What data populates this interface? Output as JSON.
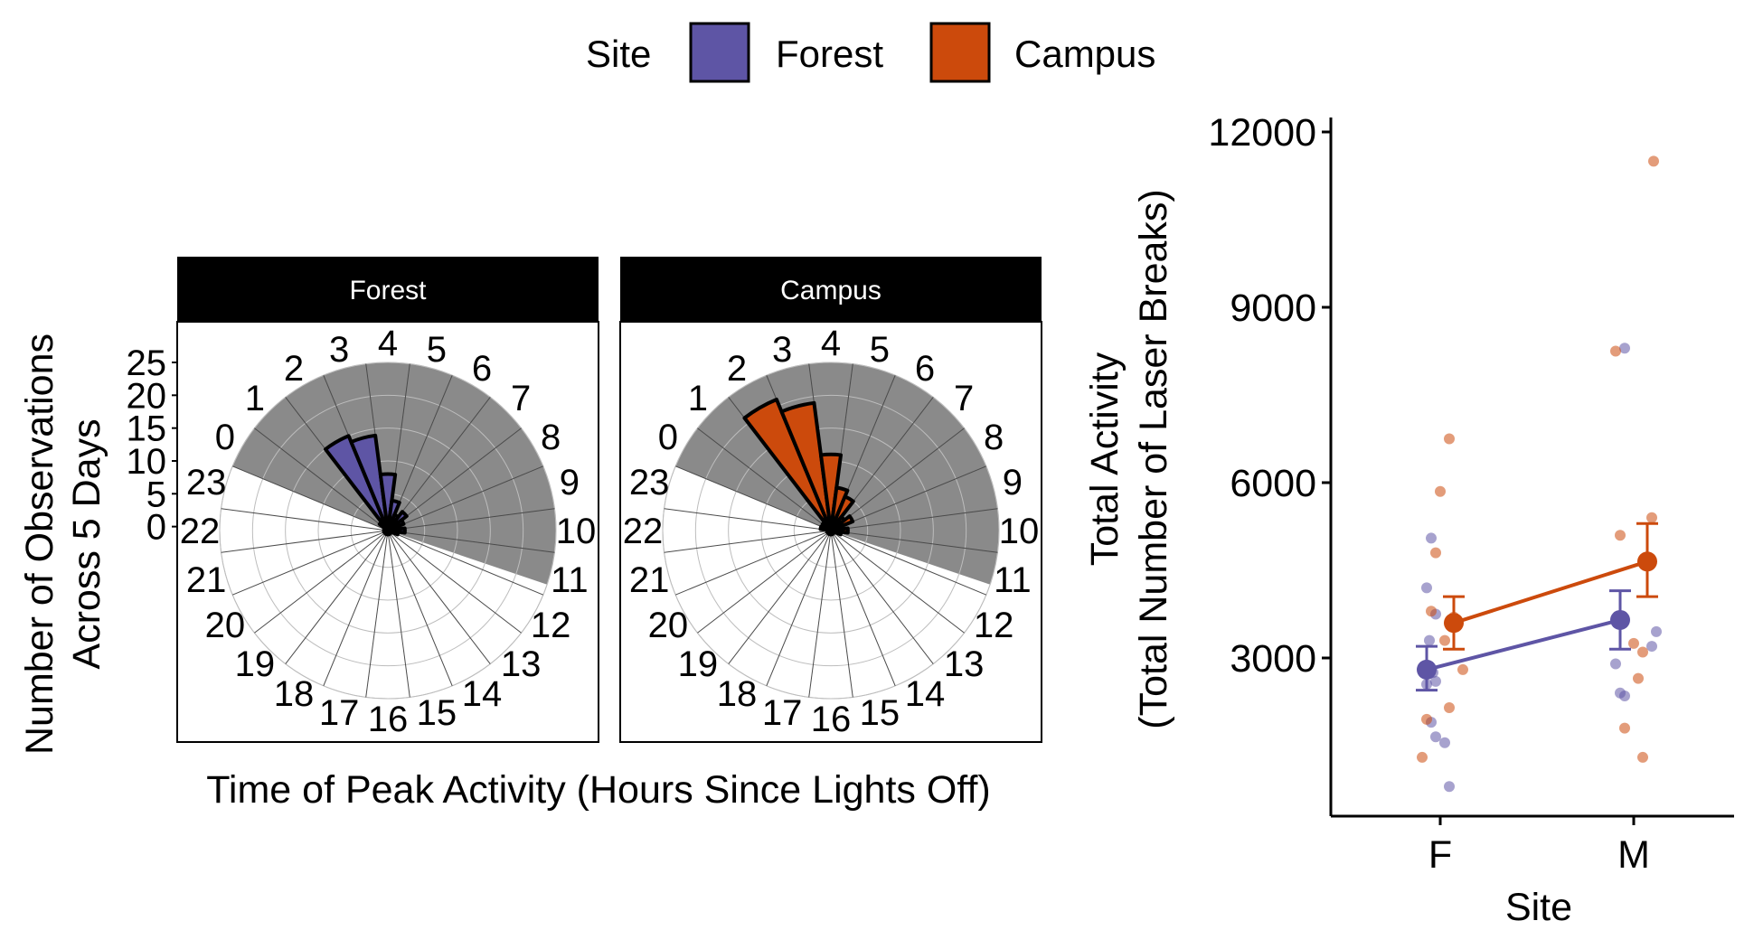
{
  "legend": {
    "title": "Site",
    "position": "top",
    "items": [
      {
        "label": "Forest",
        "color": "#5e55a5"
      },
      {
        "label": "Campus",
        "color": "#cc4a0c"
      }
    ]
  },
  "chart_data": [
    {
      "type": "rose",
      "panels": [
        "Forest",
        "Campus"
      ],
      "xlabel": "Time of Peak Activity (Hours Since Lights Off)",
      "ylabel": "Number of Observations\nAcross 5 Days",
      "hours": [
        0,
        1,
        2,
        3,
        4,
        5,
        6,
        7,
        8,
        9,
        10,
        11,
        12,
        13,
        14,
        15,
        16,
        17,
        18,
        19,
        20,
        21,
        22,
        23
      ],
      "r_ticks": [
        0,
        5,
        10,
        15,
        20,
        25
      ],
      "r_max": 25,
      "shaded_region_hours": [
        0,
        11.75
      ],
      "series": [
        {
          "name": "Forest",
          "counts": [
            0,
            1,
            15,
            14,
            8,
            4,
            2,
            3,
            2,
            1,
            2,
            1,
            0,
            0,
            0,
            0,
            0,
            0,
            0,
            0,
            0,
            0,
            0,
            0
          ]
        },
        {
          "name": "Campus",
          "counts": [
            0,
            1,
            21,
            19,
            11,
            6,
            5,
            2,
            3,
            1,
            2,
            1,
            0,
            0,
            0,
            0,
            0,
            0,
            0,
            0,
            0,
            0,
            0,
            1
          ]
        }
      ]
    },
    {
      "type": "scatter",
      "xlabel": "Site",
      "ylabel": "Total Activity\n(Total Number of Laser Breaks)",
      "categories": [
        "F",
        "M"
      ],
      "y_ticks": [
        3000,
        6000,
        9000,
        12000
      ],
      "ylim": [
        0,
        12000
      ],
      "series": [
        {
          "name": "Forest",
          "mean": [
            2800,
            3650
          ],
          "error": [
            [
              2450,
              3200
            ],
            [
              3150,
              4150
            ]
          ],
          "points": [
            [
              -0.15,
              4200
            ],
            [
              -0.05,
              3750
            ],
            [
              -0.1,
              5050
            ],
            [
              -0.12,
              3300
            ],
            [
              -0.08,
              2750
            ],
            [
              -0.05,
              2600
            ],
            [
              -0.15,
              2550
            ],
            [
              -0.1,
              1900
            ],
            [
              -0.05,
              1650
            ],
            [
              0.1,
              800
            ],
            [
              0.05,
              1550
            ],
            [
              -0.2,
              2900
            ],
            [
              -0.1,
              8300
            ],
            [
              -0.15,
              2400
            ],
            [
              -0.1,
              2350
            ],
            [
              0.2,
              3200
            ],
            [
              0.25,
              3450
            ]
          ]
        },
        {
          "name": "Campus",
          "mean": [
            3600,
            4650
          ],
          "error": [
            [
              3150,
              4050
            ],
            [
              4050,
              5300
            ]
          ],
          "points": [
            [
              0.1,
              6750
            ],
            [
              0.0,
              5850
            ],
            [
              -0.05,
              4800
            ],
            [
              -0.1,
              3800
            ],
            [
              0.05,
              3300
            ],
            [
              0.15,
              3700
            ],
            [
              0.25,
              2800
            ],
            [
              0.1,
              2150
            ],
            [
              -0.15,
              1950
            ],
            [
              -0.2,
              1300
            ],
            [
              -0.2,
              8250
            ],
            [
              -0.15,
              5100
            ],
            [
              0.2,
              5400
            ],
            [
              0.1,
              4650
            ],
            [
              0.0,
              3250
            ],
            [
              0.1,
              3100
            ],
            [
              -0.1,
              1800
            ],
            [
              0.05,
              2650
            ],
            [
              0.1,
              1300
            ],
            [
              0.22,
              11500
            ]
          ]
        }
      ]
    }
  ]
}
